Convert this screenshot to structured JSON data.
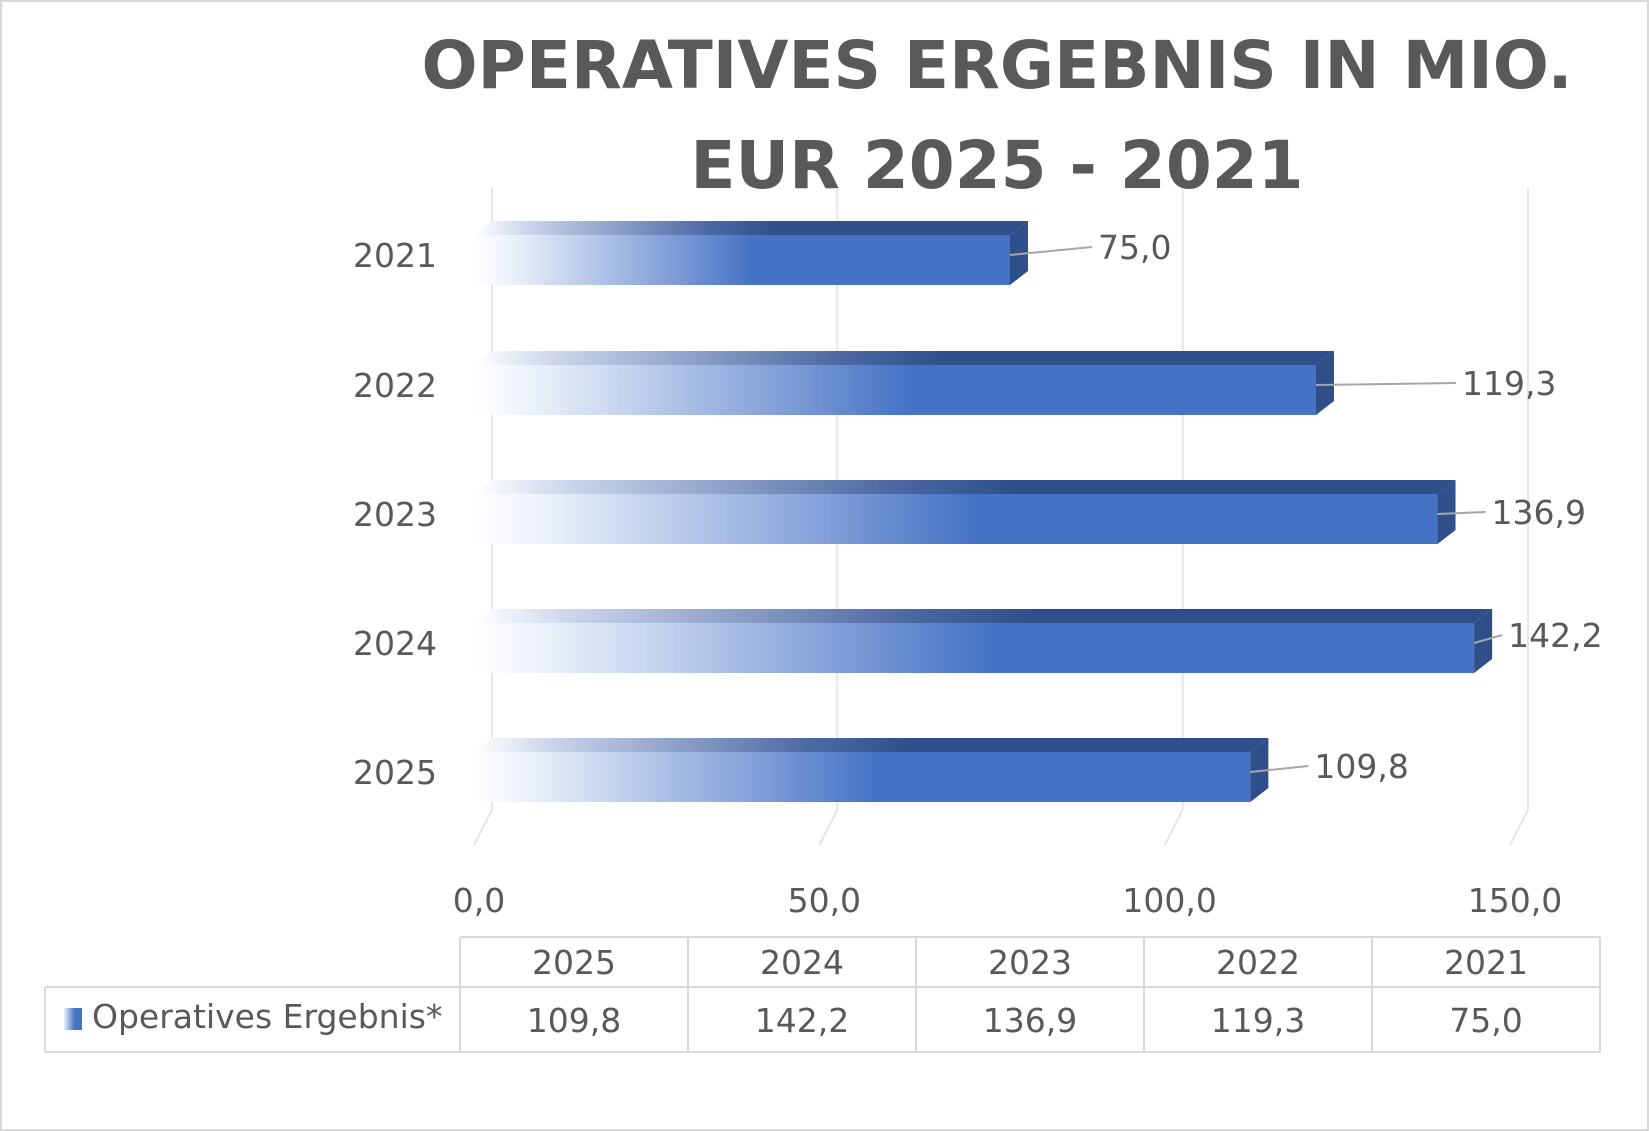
{
  "chart_data": {
    "type": "bar",
    "orientation": "horizontal",
    "title_lines": [
      "OPERATIVES ERGEBNIS IN MIO.",
      "EUR 2025 - 2021"
    ],
    "categories": [
      "2021",
      "2022",
      "2023",
      "2024",
      "2025"
    ],
    "series": [
      {
        "name": "Operatives Ergebnis*",
        "values": [
          75.0,
          119.3,
          136.9,
          142.2,
          109.8
        ]
      }
    ],
    "data_labels": [
      "75,0",
      "119,3",
      "136,9",
      "142,2",
      "109,8"
    ],
    "x_ticks": [
      0,
      50,
      100,
      150
    ],
    "x_tick_labels": [
      "0,0",
      "50,0",
      "100,0",
      "150,0"
    ],
    "xlim": [
      0,
      150
    ],
    "grid": true,
    "legend": "data-table-bottom",
    "colors": {
      "bar": "#4472c4",
      "bar_dark": "#2f4f8a",
      "bar_light": "#e9eff9",
      "text": "#595959",
      "grid": "#e6e6e6",
      "leader": "#a6a6a6"
    },
    "data_table": {
      "columns": [
        "2025",
        "2024",
        "2023",
        "2022",
        "2021"
      ],
      "row_label": "Operatives Ergebnis*",
      "values": [
        "109,8",
        "142,2",
        "136,9",
        "119,3",
        "75,0"
      ]
    }
  }
}
